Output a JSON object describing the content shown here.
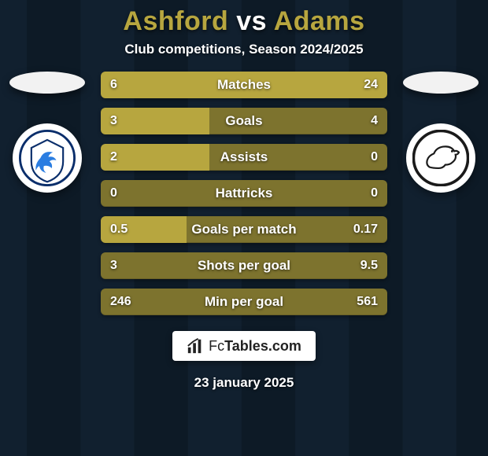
{
  "title": {
    "player1": "Ashford",
    "vs": "vs",
    "player2": "Adams",
    "color_p1": "#b7a63f",
    "color_vs": "#ffffff",
    "color_p2": "#b7a63f"
  },
  "subtitle": {
    "text": "Club competitions, Season 2024/2025",
    "color": "#ffffff"
  },
  "background": {
    "top_color": "#0d1a26",
    "bottom_color": "#101d2a",
    "vertical_stripe_color": "#152638",
    "stripe_width_ratio": 0.11
  },
  "side_left": {
    "ellipse_color": "#f2f2f2",
    "badge_bg": "#ffffff",
    "badge_ring": "#0a2e6b",
    "badge_accent": "#2a7de1",
    "badge_name": "cardiff-city-crest"
  },
  "side_right": {
    "ellipse_color": "#f2f2f2",
    "badge_bg": "#ffffff",
    "badge_ring": "#1a1a1a",
    "badge_accent": "#1a1a1a",
    "badge_name": "derby-county-crest"
  },
  "bars": {
    "track_color": "#7d732e",
    "fill_left_color": "#b7a63f",
    "fill_right_color": "#b7a63f",
    "rows": [
      {
        "label": "Matches",
        "left": "6",
        "right": "24",
        "left_frac": 0.2,
        "right_frac": 0.8
      },
      {
        "label": "Goals",
        "left": "3",
        "right": "4",
        "left_frac": 0.38,
        "right_frac": 0.0
      },
      {
        "label": "Assists",
        "left": "2",
        "right": "0",
        "left_frac": 0.38,
        "right_frac": 0.0
      },
      {
        "label": "Hattricks",
        "left": "0",
        "right": "0",
        "left_frac": 0.0,
        "right_frac": 0.0
      },
      {
        "label": "Goals per match",
        "left": "0.5",
        "right": "0.17",
        "left_frac": 0.3,
        "right_frac": 0.0
      },
      {
        "label": "Shots per goal",
        "left": "3",
        "right": "9.5",
        "left_frac": 0.0,
        "right_frac": 0.0
      },
      {
        "label": "Min per goal",
        "left": "246",
        "right": "561",
        "left_frac": 0.0,
        "right_frac": 0.0
      }
    ]
  },
  "footer": {
    "brand_prefix": "Fc",
    "brand_suffix": "Tables.com",
    "date": "23 january 2025"
  }
}
